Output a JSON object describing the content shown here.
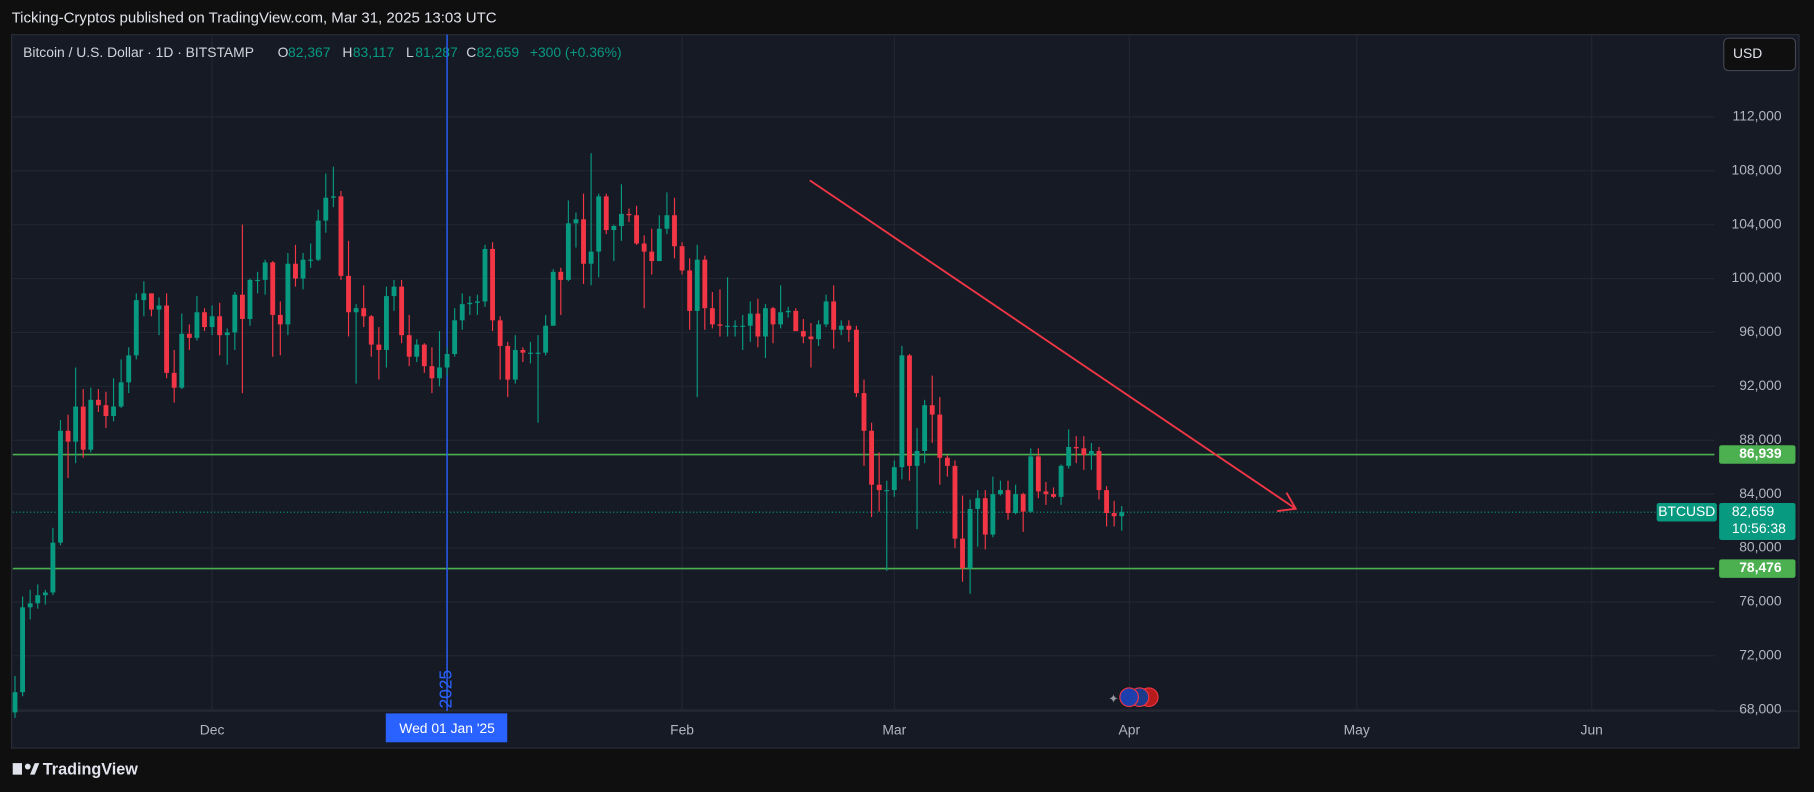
{
  "header": {
    "publisher": "Ticking-Cryptos published on TradingView.com, Mar 31, 2025 13:03 UTC",
    "brand": "TradingView"
  },
  "chart_data": {
    "type": "candlestick",
    "title": "Bitcoin / U.S. Dollar · 1D · BITSTAMP",
    "currency": "USD",
    "ohlc_legend": {
      "letters": [
        "O",
        "H",
        "L",
        "C"
      ],
      "values": [
        82367,
        83117,
        81287,
        82659
      ],
      "value_labels": [
        "82,367",
        "83,117",
        "81,287",
        "82,659"
      ],
      "change_label": "+300 (+0.36%)"
    },
    "up_color": "#089981",
    "down_color": "#f23645",
    "open": [
      67800,
      69300,
      75600,
      75900,
      76500,
      76700,
      80400,
      88700,
      87900,
      90500,
      87300,
      91000,
      90600,
      89800,
      90500,
      92300,
      94300,
      98400,
      98900,
      97700,
      98000,
      93000,
      91900,
      95900,
      95600,
      97500,
      96400,
      97200,
      95800,
      96000,
      98800,
      97000,
      99900,
      99900,
      101200,
      97300,
      96600,
      101100,
      100000,
      101400,
      101400,
      104300,
      106000,
      106100,
      100200,
      97500,
      97800,
      97200,
      95100,
      94700,
      98700,
      99400,
      95800,
      94200,
      95100,
      93500,
      92600,
      93400,
      94400,
      96900,
      98100,
      98200,
      98300,
      102200,
      96900,
      95000,
      92500,
      94700,
      94500,
      94500,
      94500,
      96500,
      100500,
      99900,
      104100,
      104400,
      101100,
      102000,
      106100,
      103600,
      103900,
      104800,
      104700,
      102600,
      102000,
      101300,
      103700,
      104700,
      102400,
      100600,
      97600,
      101400,
      97800,
      96600,
      96500,
      96500,
      96500,
      96500,
      97400,
      95700,
      97800,
      96600,
      97500,
      97600,
      96100,
      95700,
      95500,
      96600,
      98300,
      96200,
      96500,
      96200,
      91500,
      88700,
      84700,
      84300,
      84300,
      86000,
      94300,
      86100,
      87200,
      90600,
      89900,
      86700,
      86100,
      80700,
      78500,
      82900,
      83700,
      81000,
      84000,
      84300,
      82600,
      84000,
      82700,
      86800,
      84200,
      84000,
      83800,
      86100,
      87500,
      87400,
      86900,
      87200,
      84300,
      82600,
      82367
    ],
    "high": [
      70500,
      76400,
      76900,
      77300,
      76900,
      81500,
      89500,
      89900,
      93400,
      91800,
      91900,
      91800,
      91600,
      92600,
      94000,
      94900,
      98900,
      99800,
      98900,
      98600,
      98900,
      94700,
      97400,
      96600,
      98700,
      97800,
      98000,
      98200,
      96300,
      99000,
      104000,
      100000,
      100500,
      101400,
      101300,
      98300,
      101900,
      102500,
      101900,
      102600,
      105100,
      107800,
      108300,
      106500,
      102800,
      98100,
      99500,
      97300,
      96400,
      99400,
      99900,
      99900,
      97300,
      95500,
      95200,
      94900,
      96100,
      94900,
      97800,
      98900,
      98700,
      98800,
      102500,
      102700,
      97200,
      95300,
      95800,
      94900,
      95300,
      95800,
      97300,
      100700,
      100800,
      105800,
      104900,
      106300,
      109300,
      106300,
      106300,
      104000,
      107000,
      105200,
      105400,
      103200,
      103700,
      104700,
      106400,
      106000,
      102700,
      101500,
      102500,
      101700,
      99000,
      99200,
      100100,
      96900,
      97300,
      98300,
      98500,
      98100,
      97900,
      99500,
      97900,
      97800,
      97000,
      96700,
      96900,
      98800,
      99500,
      96900,
      96900,
      96500,
      92500,
      89300,
      87100,
      85000,
      86500,
      95000,
      94400,
      88900,
      91000,
      92800,
      91200,
      86900,
      86500,
      83900,
      83600,
      84300,
      84300,
      85300,
      85000,
      85000,
      84700,
      84100,
      87400,
      87400,
      84900,
      84500,
      86200,
      88800,
      88300,
      88300,
      87800,
      87500,
      84600,
      83500,
      83117
    ],
    "low": [
      67400,
      69000,
      74700,
      75500,
      75800,
      76500,
      80200,
      85200,
      86300,
      86700,
      87100,
      90100,
      88900,
      89400,
      90400,
      91500,
      94000,
      97200,
      97200,
      95800,
      92600,
      90800,
      91800,
      94700,
      95400,
      96100,
      95800,
      94300,
      93600,
      94700,
      91500,
      96500,
      98900,
      98800,
      94200,
      94300,
      95800,
      99400,
      99200,
      100800,
      101300,
      103400,
      105300,
      99900,
      95700,
      92200,
      96400,
      94200,
      92500,
      93400,
      97600,
      95200,
      93500,
      93800,
      93000,
      91500,
      92000,
      92800,
      94200,
      96200,
      97300,
      97300,
      97900,
      96100,
      92500,
      91200,
      92200,
      93800,
      93700,
      89300,
      94300,
      96500,
      97300,
      99800,
      102300,
      99600,
      99500,
      100100,
      103300,
      101300,
      102800,
      104200,
      102500,
      97800,
      100300,
      101300,
      103300,
      101500,
      100300,
      96200,
      91200,
      96200,
      96300,
      95700,
      95700,
      95700,
      94700,
      95300,
      94900,
      94100,
      95200,
      96300,
      97100,
      96100,
      95200,
      93400,
      95000,
      96400,
      94800,
      95800,
      95300,
      91200,
      86100,
      82300,
      82700,
      78300,
      83800,
      85100,
      85000,
      81400,
      86300,
      87800,
      84700,
      85300,
      80000,
      77500,
      76600,
      80100,
      79900,
      80800,
      83900,
      82100,
      82500,
      81200,
      82600,
      83700,
      83200,
      83700,
      83200,
      85900,
      86300,
      85800,
      85800,
      83600,
      81600,
      81600,
      81287
    ],
    "close": [
      69300,
      75600,
      75900,
      76500,
      76700,
      80400,
      88700,
      87900,
      90500,
      87300,
      91000,
      90600,
      89800,
      90500,
      92300,
      94300,
      98400,
      98900,
      97700,
      98000,
      93000,
      91900,
      95900,
      95600,
      97500,
      96400,
      97200,
      95800,
      96000,
      98800,
      97000,
      99900,
      99900,
      101200,
      97300,
      96600,
      101100,
      100000,
      101400,
      101400,
      104300,
      106000,
      106100,
      100200,
      97500,
      97800,
      97200,
      95100,
      94700,
      98700,
      99400,
      95800,
      94200,
      95100,
      93500,
      92600,
      93400,
      94400,
      96900,
      98100,
      98200,
      98300,
      102200,
      96900,
      95000,
      92500,
      94700,
      94500,
      94500,
      94500,
      96500,
      100500,
      99900,
      104100,
      104400,
      101100,
      102000,
      106100,
      103600,
      103900,
      104800,
      104700,
      102600,
      102000,
      101300,
      103700,
      104700,
      102400,
      100600,
      97600,
      101400,
      97800,
      96600,
      96500,
      96500,
      96500,
      96500,
      97400,
      95700,
      97800,
      96600,
      97500,
      97600,
      96100,
      95700,
      95500,
      96600,
      98300,
      96200,
      96500,
      96200,
      91500,
      88700,
      84700,
      84300,
      84300,
      86000,
      94300,
      86100,
      87200,
      90600,
      89900,
      86700,
      86100,
      80700,
      78500,
      82900,
      83700,
      81000,
      84000,
      84300,
      82600,
      84000,
      82700,
      86800,
      84200,
      84000,
      83800,
      86100,
      87500,
      87400,
      86900,
      87200,
      84300,
      82600,
      82359,
      82659
    ],
    "xlim": [
      -0.3,
      224.2
    ],
    "xticks": [
      {
        "value": 26,
        "label": "Dec"
      },
      {
        "value": 88,
        "label": "Feb"
      },
      {
        "value": 116,
        "label": "Mar"
      },
      {
        "value": 147,
        "label": "Apr"
      },
      {
        "value": 177,
        "label": "May"
      },
      {
        "value": 208,
        "label": "Jun"
      }
    ],
    "ylim": [
      67900,
      118100
    ],
    "yticks": [
      {
        "value": 68000,
        "label": "68,000"
      },
      {
        "value": 72000,
        "label": "72,000"
      },
      {
        "value": 76000,
        "label": "76,000"
      },
      {
        "value": 80000,
        "label": "80,000"
      },
      {
        "value": 84000,
        "label": "84,000"
      },
      {
        "value": 88000,
        "label": "88,000"
      },
      {
        "value": 92000,
        "label": "92,000"
      },
      {
        "value": 96000,
        "label": "96,000"
      },
      {
        "value": 100000,
        "label": "100,000"
      },
      {
        "value": 104000,
        "label": "104,000"
      },
      {
        "value": 108000,
        "label": "108,000"
      },
      {
        "value": 112000,
        "label": "112,000"
      }
    ],
    "grid": true,
    "crosshair": {
      "x": 57,
      "label": "Wed 01 Jan '25",
      "year_label": "2025",
      "color": "#2962ff"
    },
    "levels": [
      {
        "value": 86939,
        "label": "86,939"
      },
      {
        "value": 78476,
        "label": "78,476"
      }
    ],
    "level_color": "#4caf50",
    "last_price": {
      "name": "BTCUSD",
      "value": 82659,
      "label": "82,659",
      "countdown": "10:56:38"
    }
  }
}
